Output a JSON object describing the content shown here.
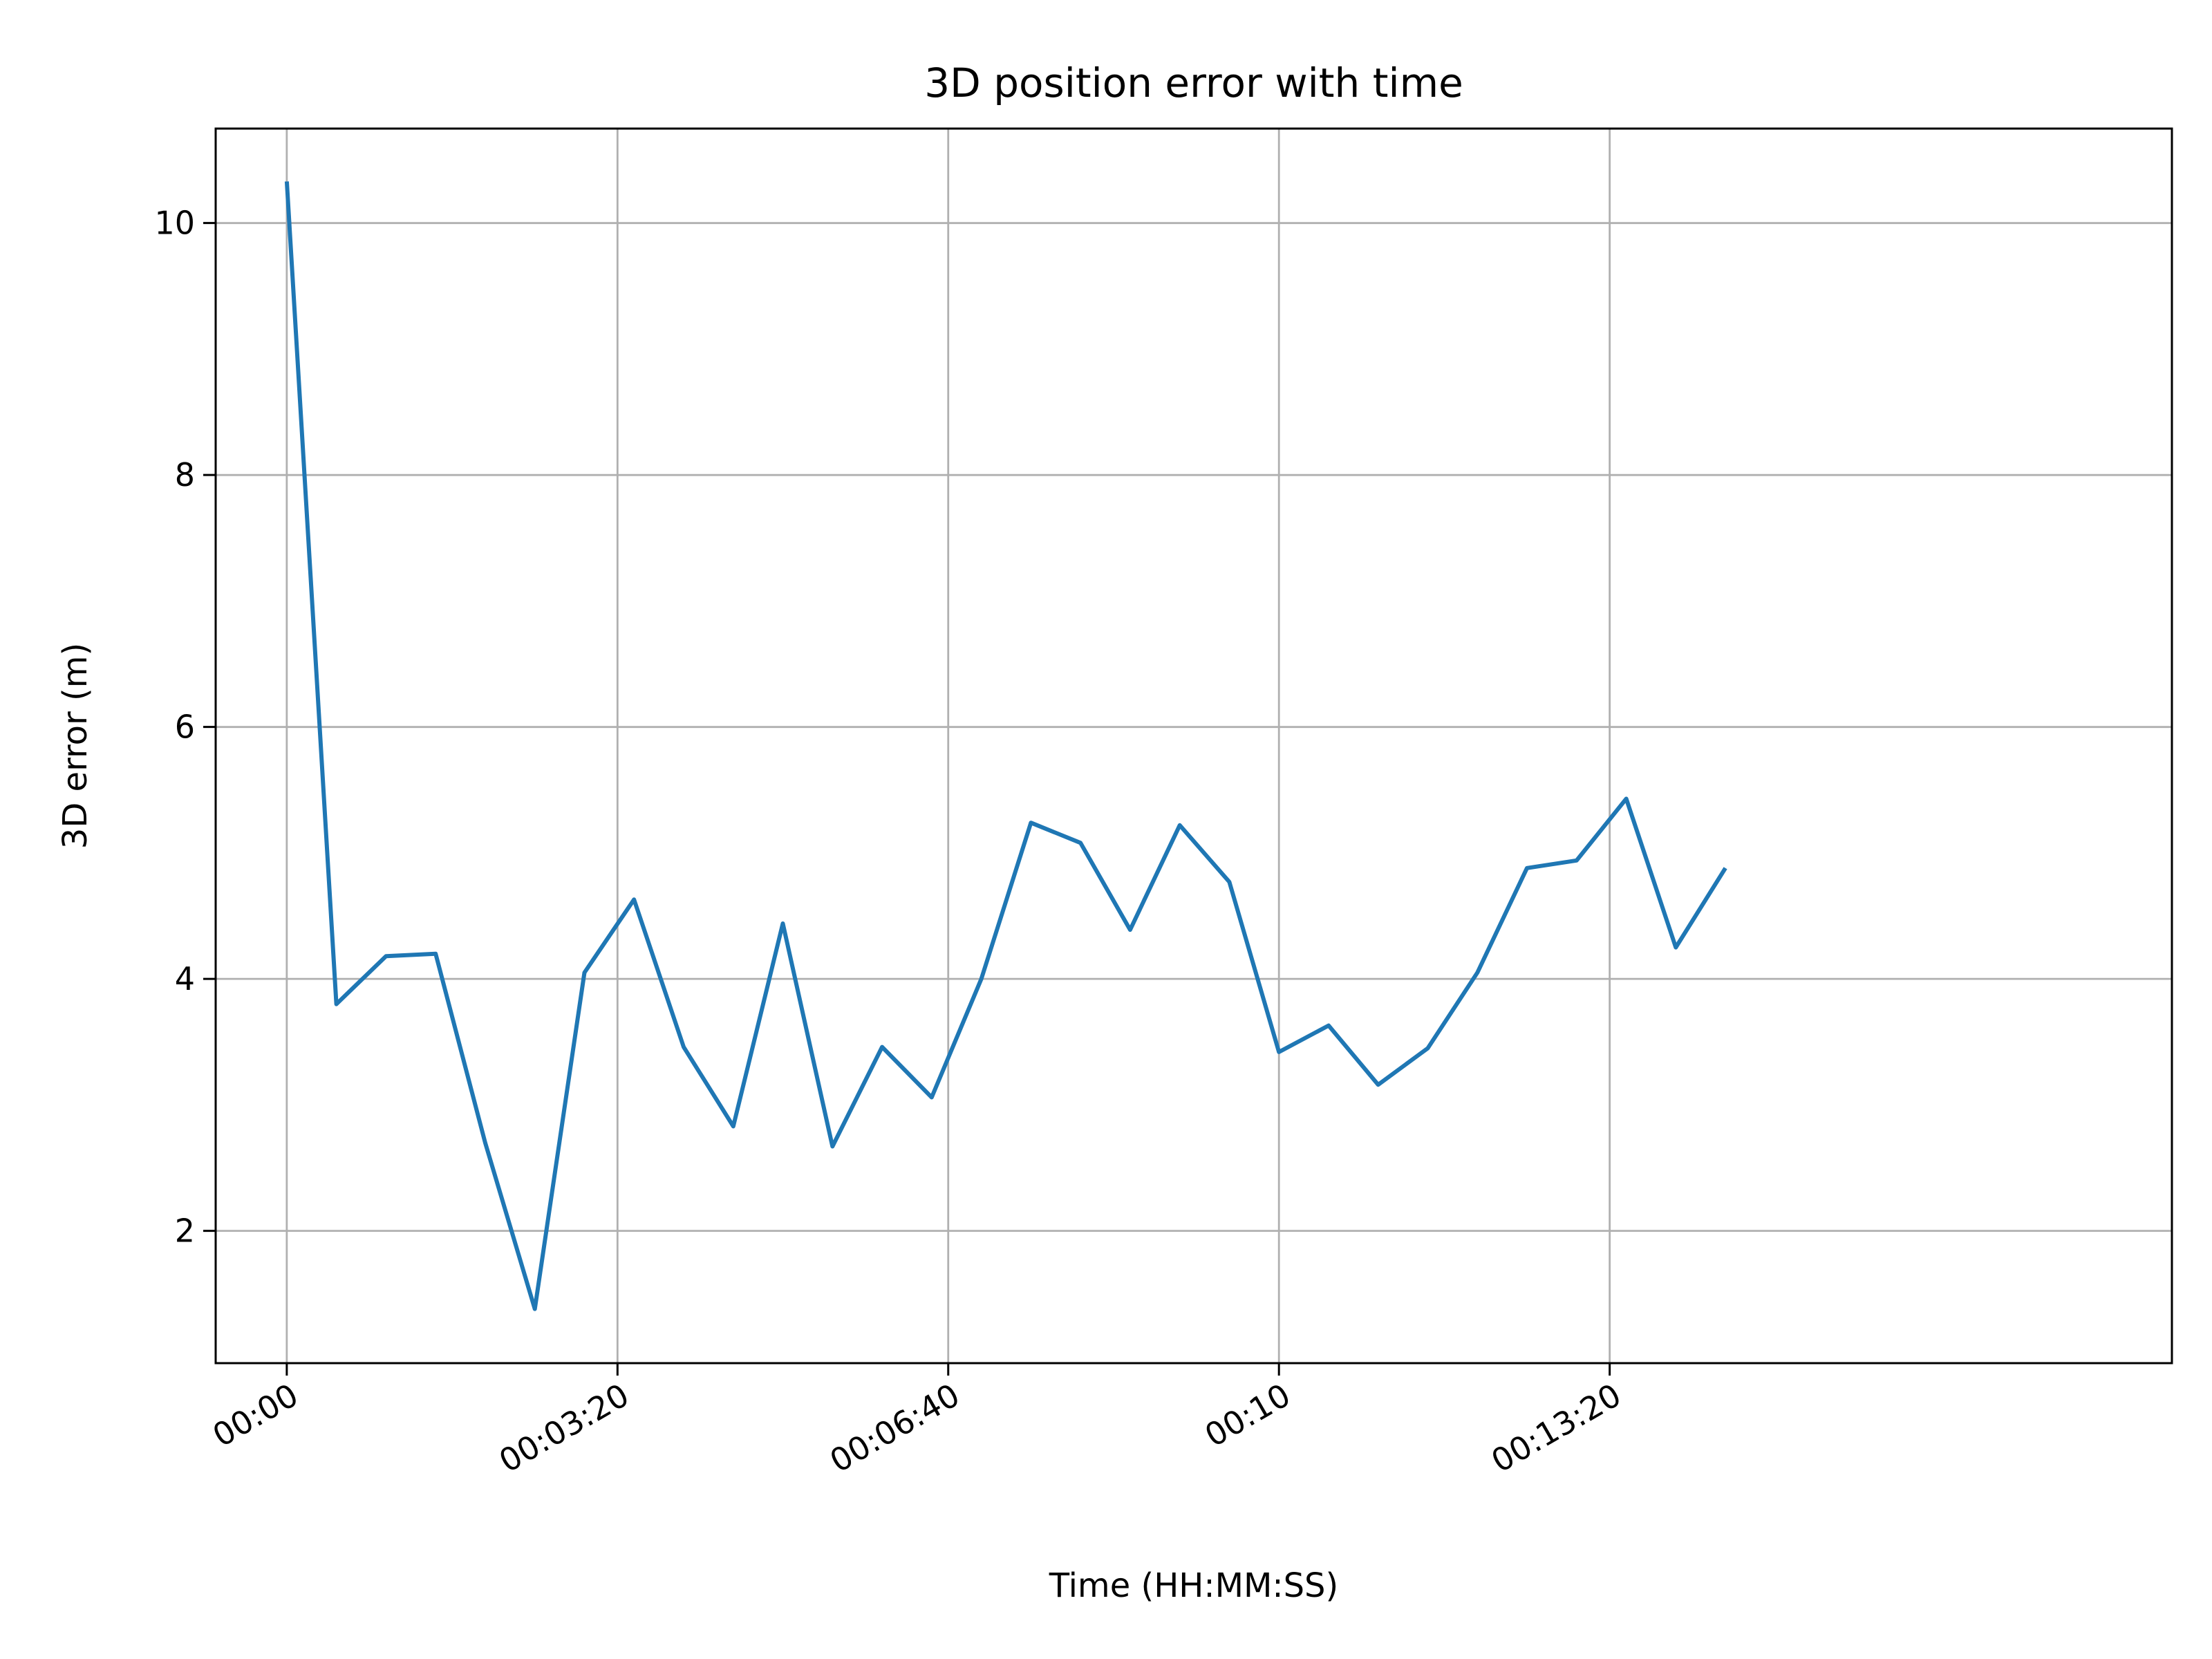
{
  "chart_data": {
    "type": "line",
    "title": "3D position error with time",
    "xlabel": "Time (HH:MM:SS)",
    "ylabel": "3D error (m)",
    "grid": true,
    "legend": "none",
    "x_unit": "seconds",
    "xlim": [
      -43,
      1140
    ],
    "ylim": [
      0.95,
      10.75
    ],
    "x_ticks": [
      {
        "value": 0,
        "label": "00:00"
      },
      {
        "value": 200,
        "label": "00:03:20"
      },
      {
        "value": 400,
        "label": "00:06:40"
      },
      {
        "value": 600,
        "label": "00:10"
      },
      {
        "value": 800,
        "label": "00:13:20"
      }
    ],
    "y_ticks": [
      {
        "value": 2,
        "label": "2"
      },
      {
        "value": 4,
        "label": "4"
      },
      {
        "value": 6,
        "label": "6"
      },
      {
        "value": 8,
        "label": "8"
      },
      {
        "value": 10,
        "label": "10"
      }
    ],
    "series": [
      {
        "color": "#1f77b4",
        "x": [
          0,
          30,
          60,
          90,
          120,
          150,
          180,
          210,
          240,
          270,
          300,
          330,
          360,
          390,
          420,
          450,
          480,
          510,
          540,
          570,
          600,
          630,
          660,
          690,
          720,
          750,
          780,
          810,
          840,
          870
        ],
        "y": [
          10.33,
          3.8,
          4.18,
          4.2,
          2.7,
          1.38,
          4.05,
          4.63,
          3.46,
          2.83,
          4.44,
          2.67,
          3.46,
          3.06,
          4.0,
          5.24,
          5.08,
          4.39,
          5.22,
          4.77,
          3.42,
          3.63,
          3.16,
          3.45,
          4.05,
          4.88,
          4.94,
          5.43,
          4.25,
          4.88
        ]
      }
    ]
  }
}
